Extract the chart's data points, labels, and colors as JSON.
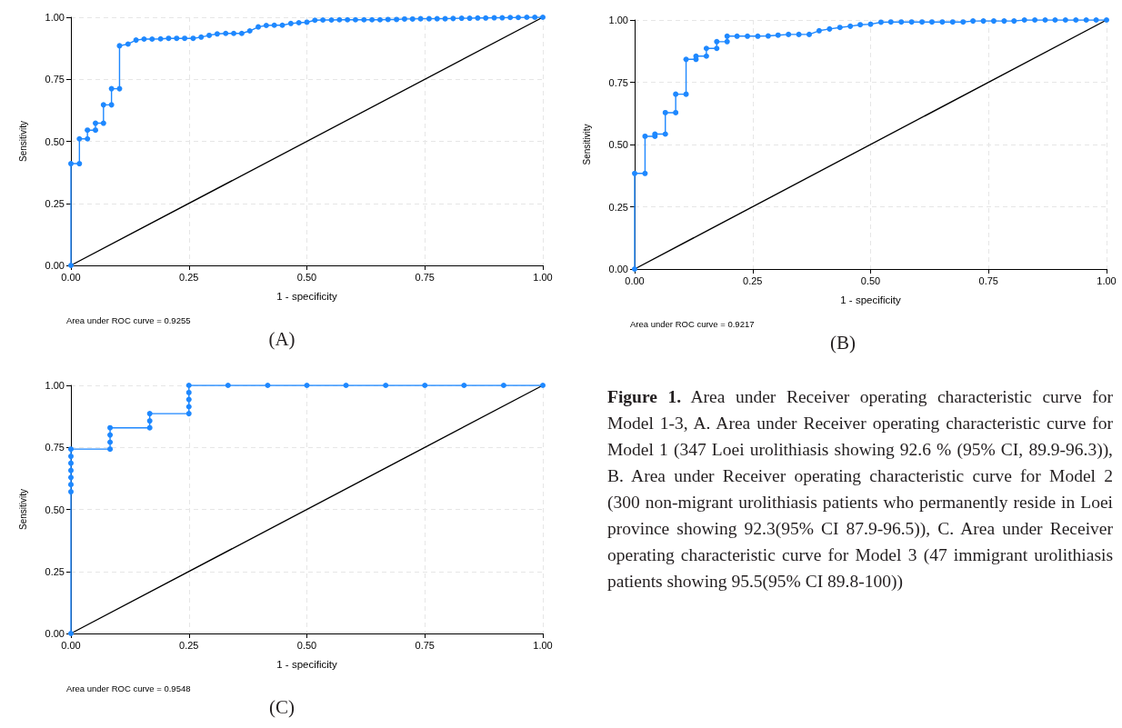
{
  "chart_data": [
    {
      "type": "line",
      "xlabel": "1 - specificity",
      "ylabel": "Sensitivity",
      "annotations": [
        "Area under ROC curve = 0.9255",
        "(A)"
      ],
      "grid": true,
      "xlim": [
        0,
        1
      ],
      "ylim": [
        0,
        1
      ],
      "xticks": [
        {
          "value": 0,
          "label": "0.00"
        },
        {
          "value": 0.25,
          "label": "0.25"
        },
        {
          "value": 0.5,
          "label": "0.50"
        },
        {
          "value": 0.75,
          "label": "0.75"
        },
        {
          "value": 1,
          "label": "1.00"
        }
      ],
      "yticks": [
        {
          "value": 0,
          "label": "0.00"
        },
        {
          "value": 0.25,
          "label": "0.25"
        },
        {
          "value": 0.5,
          "label": "0.50"
        },
        {
          "value": 0.75,
          "label": "0.75"
        },
        {
          "value": 1,
          "label": "1.00"
        }
      ],
      "series": [
        {
          "color": "#1e88ff",
          "marker": "circle",
          "x": [
            0,
            0,
            0.018,
            0.018,
            0.035,
            0.035,
            0.052,
            0.052,
            0.069,
            0.069,
            0.086,
            0.086,
            0.103,
            0.103,
            0.121,
            0.138,
            0.155,
            0.172,
            0.19,
            0.207,
            0.224,
            0.241,
            0.259,
            0.276,
            0.293,
            0.31,
            0.328,
            0.345,
            0.362,
            0.379,
            0.397,
            0.414,
            0.431,
            0.448,
            0.466,
            0.483,
            0.5,
            0.517,
            0.534,
            0.552,
            0.569,
            0.586,
            0.603,
            0.621,
            0.638,
            0.655,
            0.672,
            0.69,
            0.707,
            0.724,
            0.741,
            0.759,
            0.776,
            0.793,
            0.81,
            0.828,
            0.845,
            0.862,
            0.879,
            0.897,
            0.914,
            0.931,
            0.948,
            0.966,
            0.983,
            1
          ],
          "values": [
            0,
            0.41,
            0.41,
            0.51,
            0.51,
            0.545,
            0.545,
            0.573,
            0.573,
            0.647,
            0.647,
            0.712,
            0.712,
            0.885,
            0.892,
            0.908,
            0.912,
            0.912,
            0.913,
            0.915,
            0.915,
            0.915,
            0.915,
            0.92,
            0.927,
            0.933,
            0.935,
            0.935,
            0.935,
            0.945,
            0.961,
            0.967,
            0.968,
            0.968,
            0.975,
            0.978,
            0.98,
            0.988,
            0.989,
            0.989,
            0.99,
            0.99,
            0.99,
            0.99,
            0.99,
            0.99,
            0.991,
            0.991,
            0.993,
            0.993,
            0.994,
            0.994,
            0.994,
            0.994,
            0.995,
            0.996,
            0.996,
            0.997,
            0.997,
            0.998,
            0.998,
            0.999,
            0.999,
            1,
            1,
            1
          ]
        },
        {
          "color": "#000000",
          "marker": "none",
          "x": [
            0,
            1
          ],
          "values": [
            0,
            1
          ]
        }
      ]
    },
    {
      "type": "line",
      "xlabel": "1 - specificity",
      "ylabel": "Sensitivity",
      "annotations": [
        "Area under ROC curve = 0.9217",
        "(B)"
      ],
      "grid": true,
      "xlim": [
        0,
        1
      ],
      "ylim": [
        0,
        1
      ],
      "xticks": [
        {
          "value": 0,
          "label": "0.00"
        },
        {
          "value": 0.25,
          "label": "0.25"
        },
        {
          "value": 0.5,
          "label": "0.50"
        },
        {
          "value": 0.75,
          "label": "0.75"
        },
        {
          "value": 1,
          "label": "1.00"
        }
      ],
      "yticks": [
        {
          "value": 0,
          "label": "0.00"
        },
        {
          "value": 0.25,
          "label": "0.25"
        },
        {
          "value": 0.5,
          "label": "0.50"
        },
        {
          "value": 0.75,
          "label": "0.75"
        },
        {
          "value": 1,
          "label": "1.00"
        }
      ],
      "series": [
        {
          "color": "#1e88ff",
          "marker": "circle",
          "x": [
            0,
            0,
            0.022,
            0.022,
            0.043,
            0.043,
            0.065,
            0.065,
            0.087,
            0.087,
            0.109,
            0.109,
            0.13,
            0.13,
            0.152,
            0.152,
            0.174,
            0.174,
            0.196,
            0.196,
            0.217,
            0.239,
            0.261,
            0.283,
            0.304,
            0.326,
            0.348,
            0.37,
            0.391,
            0.413,
            0.435,
            0.457,
            0.478,
            0.5,
            0.522,
            0.543,
            0.565,
            0.587,
            0.609,
            0.63,
            0.652,
            0.674,
            0.696,
            0.717,
            0.739,
            0.761,
            0.783,
            0.804,
            0.826,
            0.848,
            0.87,
            0.891,
            0.913,
            0.935,
            0.957,
            0.978,
            1
          ],
          "values": [
            0,
            0.384,
            0.384,
            0.533,
            0.533,
            0.542,
            0.542,
            0.628,
            0.628,
            0.702,
            0.702,
            0.842,
            0.842,
            0.855,
            0.855,
            0.886,
            0.886,
            0.913,
            0.913,
            0.935,
            0.935,
            0.935,
            0.935,
            0.936,
            0.939,
            0.942,
            0.942,
            0.942,
            0.957,
            0.964,
            0.97,
            0.975,
            0.981,
            0.983,
            0.991,
            0.992,
            0.992,
            0.992,
            0.992,
            0.992,
            0.992,
            0.992,
            0.992,
            0.996,
            0.996,
            0.996,
            0.996,
            0.996,
            1,
            1,
            1,
            1,
            1,
            1,
            1,
            1,
            1
          ]
        },
        {
          "color": "#000000",
          "marker": "none",
          "x": [
            0,
            1
          ],
          "values": [
            0,
            1
          ]
        }
      ]
    },
    {
      "type": "line",
      "xlabel": "1 - specificity",
      "ylabel": "Sensitivity",
      "annotations": [
        "Area under ROC curve = 0.9548",
        "(C)"
      ],
      "grid": true,
      "xlim": [
        0,
        1
      ],
      "ylim": [
        0,
        1
      ],
      "xticks": [
        {
          "value": 0,
          "label": "0.00"
        },
        {
          "value": 0.25,
          "label": "0.25"
        },
        {
          "value": 0.5,
          "label": "0.50"
        },
        {
          "value": 0.75,
          "label": "0.75"
        },
        {
          "value": 1,
          "label": "1.00"
        }
      ],
      "yticks": [
        {
          "value": 0,
          "label": "0.00"
        },
        {
          "value": 0.25,
          "label": "0.25"
        },
        {
          "value": 0.5,
          "label": "0.50"
        },
        {
          "value": 0.75,
          "label": "0.75"
        },
        {
          "value": 1,
          "label": "1.00"
        }
      ],
      "series": [
        {
          "color": "#1e88ff",
          "marker": "circle",
          "x": [
            0,
            0,
            0,
            0,
            0,
            0,
            0,
            0,
            0.083,
            0.083,
            0.083,
            0.083,
            0.167,
            0.167,
            0.167,
            0.25,
            0.25,
            0.25,
            0.25,
            0.25,
            0.333,
            0.417,
            0.5,
            0.583,
            0.667,
            0.75,
            0.833,
            0.917,
            1
          ],
          "values": [
            0,
            0.571,
            0.6,
            0.629,
            0.657,
            0.686,
            0.714,
            0.743,
            0.743,
            0.771,
            0.8,
            0.829,
            0.829,
            0.857,
            0.886,
            0.886,
            0.914,
            0.943,
            0.971,
            1,
            1,
            1,
            1,
            1,
            1,
            1,
            1,
            1,
            1
          ]
        },
        {
          "color": "#000000",
          "marker": "none",
          "x": [
            0,
            1
          ],
          "values": [
            0,
            1
          ]
        }
      ]
    },
    {
      "type": "other",
      "title": "Figure 1.",
      "annotations": [
        "Area under Receiver operating characteristic curve for Model 1-3, A. Area under Receiver operating characteristic curve for Model 1 (347 Loei urolithiasis showing 92.6 % (95% CI, 89.9-96.3)), B. Area under Receiver operating characteristic curve for Model 2 (300 non-migrant urolithiasis patients who permanently reside in Loei province showing 92.3(95% CI 87.9-96.5)), C. Area under Receiver operating characteristic curve for Model 3 (47 immigrant urolithiasis patients showing 95.5(95% CI 89.8-100))"
      ]
    }
  ]
}
